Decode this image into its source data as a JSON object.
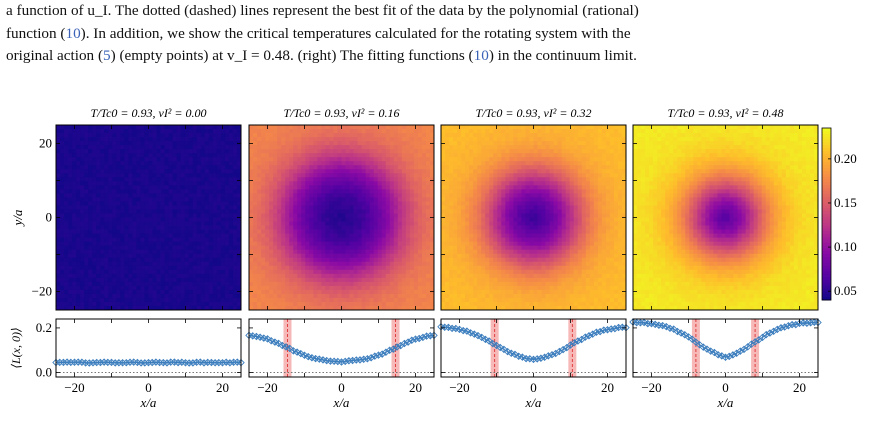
{
  "caption": {
    "line1": "a function of u_I.  The dotted (dashed) lines represent the best fit of the data by the polynomial (rational)",
    "line2_pre": "function (",
    "line2_ref": "10",
    "line2_post": ").  In addition, we show the critical temperatures calculated for the rotating system with the",
    "line3_pre": "original action (",
    "line3_ref1": "5",
    "line3_mid": ") (empty points) at v_I = 0.48. (right) The fitting functions (",
    "line3_ref2": "10",
    "line3_post": ") in the continuum limit."
  },
  "chart_data": [
    {
      "type": "heatmap",
      "panel_titles": [
        "T/Tc0 = 0.93,   vI² = 0.00",
        "T/Tc0 = 0.93,   vI² = 0.16",
        "T/Tc0 = 0.93,   vI² = 0.32",
        "T/Tc0 = 0.93,   vI² = 0.48"
      ],
      "v2": [
        0.0,
        0.16,
        0.32,
        0.48
      ],
      "ylabel": "y/a",
      "y_ticks": [
        "20",
        "0",
        "−20"
      ],
      "xlim": [
        -25,
        25
      ],
      "ylim": [
        -25,
        25
      ],
      "center_value": [
        0.045,
        0.045,
        0.045,
        0.045
      ],
      "edge_value": [
        0.045,
        0.175,
        0.205,
        0.225
      ],
      "colorbar": {
        "range": [
          0.04,
          0.235
        ],
        "ticks": [
          "0.20",
          "0.15",
          "0.10",
          "0.05"
        ],
        "colormap": "plasma"
      }
    },
    {
      "type": "line",
      "ylabel": "⟨L(x, 0)⟩",
      "xlabel": "x/a",
      "x_ticks": [
        "−20",
        "0",
        "20"
      ],
      "y_ticks": [
        "0.2",
        "0.0"
      ],
      "xlim": [
        -25,
        25
      ],
      "ylim": [
        -0.02,
        0.24
      ],
      "marker_color": "#3b7dbd",
      "band_color": "#f4a0a0",
      "critical_radius": [
        null,
        14.6,
        10.5,
        8.0
      ],
      "series_min": [
        0.045,
        0.045,
        0.045,
        0.045
      ],
      "series_max": [
        0.045,
        0.175,
        0.205,
        0.215
      ]
    }
  ]
}
